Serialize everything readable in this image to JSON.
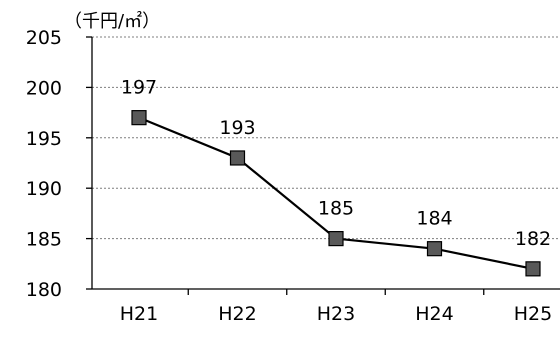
{
  "chart_data": {
    "type": "line",
    "title": "",
    "xlabel": "",
    "ylabel": "",
    "unit_label": "（千円/㎡）",
    "categories": [
      "H21",
      "H22",
      "H23",
      "H24",
      "H25"
    ],
    "series": [
      {
        "values": [
          197,
          193,
          185,
          184,
          182
        ],
        "marker": "square",
        "line_color": "#000000",
        "marker_color": "#595959"
      }
    ],
    "ylim": [
      180,
      205
    ],
    "yticks": [
      180,
      185,
      190,
      195,
      200,
      205
    ],
    "ytick_labels": [
      "180",
      "185",
      "190",
      "195",
      "200",
      "205"
    ],
    "grid": "horizontal-dotted",
    "data_labels": [
      "197",
      "193",
      "185",
      "184",
      "182"
    ],
    "colors": {
      "line": "#000000",
      "marker_fill": "#595959",
      "grid": "#7f7f7f",
      "axis": "#000000"
    }
  }
}
